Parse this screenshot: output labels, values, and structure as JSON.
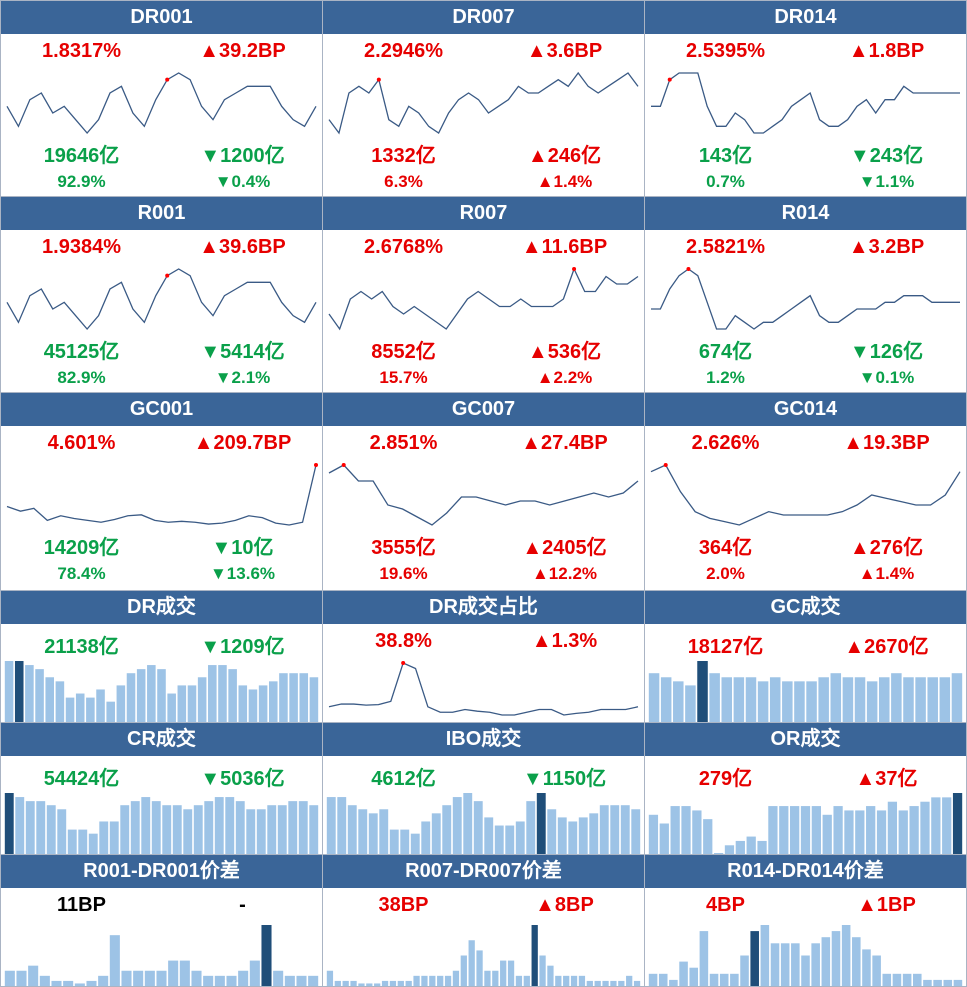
{
  "colors": {
    "header_bg": "#3a6598",
    "up": "#e60000",
    "down": "#0aa04a",
    "line": "#3a5a85",
    "bar": "#9dc3e6",
    "bar_highlight": "#1f4e79"
  },
  "rows": [
    {
      "type": "line-full",
      "cells": [
        {
          "id": "dr001",
          "title": "DR001",
          "rate": "1.8317%",
          "rate_color": "red",
          "rate_change": "▲39.2BP",
          "rate_change_color": "red",
          "volume": "19646亿",
          "volume_color": "green",
          "volume_change": "▼1200亿",
          "volume_change_color": "green",
          "share": "92.9%",
          "share_color": "green",
          "share_change": "▼0.4%",
          "share_change_color": "green",
          "chart_data": {
            "type": "line",
            "values": [
              6,
              3,
              7,
              8,
              5,
              6,
              4,
              2,
              4,
              8,
              9,
              5,
              3,
              7,
              10,
              11,
              10,
              6,
              4,
              7,
              8,
              9,
              9,
              9,
              6,
              4,
              3,
              6
            ],
            "highlight_index": 14
          }
        },
        {
          "id": "dr007",
          "title": "DR007",
          "rate": "2.2946%",
          "rate_color": "red",
          "rate_change": "▲3.6BP",
          "rate_change_color": "red",
          "volume": "1332亿",
          "volume_color": "red",
          "volume_change": "▲246亿",
          "volume_change_color": "red",
          "share": "6.3%",
          "share_color": "red",
          "share_change": "▲1.4%",
          "share_change_color": "red",
          "chart_data": {
            "type": "line",
            "values": [
              3,
              1,
              7,
              8,
              7,
              9,
              3,
              2,
              5,
              4,
              2,
              1,
              4,
              6,
              7,
              6,
              4,
              5,
              6,
              8,
              7,
              7,
              8,
              9,
              8,
              10,
              8,
              7,
              8,
              9,
              10,
              8
            ],
            "highlight_index": 5
          }
        },
        {
          "id": "dr014",
          "title": "DR014",
          "rate": "2.5395%",
          "rate_color": "red",
          "rate_change": "▲1.8BP",
          "rate_change_color": "red",
          "volume": "143亿",
          "volume_color": "green",
          "volume_change": "▼243亿",
          "volume_change_color": "green",
          "share": "0.7%",
          "share_color": "green",
          "share_change": "▼1.1%",
          "share_change_color": "green",
          "chart_data": {
            "type": "line",
            "values": [
              5,
              5,
              9,
              10,
              10,
              10,
              5,
              2,
              2,
              4,
              3,
              1,
              1,
              2,
              3,
              5,
              6,
              7,
              3,
              2,
              2,
              3,
              5,
              6,
              4,
              6,
              6,
              8,
              7,
              7,
              7,
              7,
              7,
              7
            ],
            "highlight_index": 2
          }
        }
      ]
    },
    {
      "type": "line-full",
      "cells": [
        {
          "id": "r001",
          "title": "R001",
          "rate": "1.9384%",
          "rate_color": "red",
          "rate_change": "▲39.6BP",
          "rate_change_color": "red",
          "volume": "45125亿",
          "volume_color": "green",
          "volume_change": "▼5414亿",
          "volume_change_color": "green",
          "share": "82.9%",
          "share_color": "green",
          "share_change": "▼2.1%",
          "share_change_color": "green",
          "chart_data": {
            "type": "line",
            "values": [
              6,
              3,
              7,
              8,
              5,
              6,
              4,
              2,
              4,
              8,
              9,
              5,
              3,
              7,
              10,
              11,
              10,
              6,
              4,
              7,
              8,
              9,
              9,
              9,
              6,
              4,
              3,
              6
            ],
            "highlight_index": 14
          }
        },
        {
          "id": "r007",
          "title": "R007",
          "rate": "2.6768%",
          "rate_color": "red",
          "rate_change": "▲11.6BP",
          "rate_change_color": "red",
          "volume": "8552亿",
          "volume_color": "red",
          "volume_change": "▲536亿",
          "volume_change_color": "red",
          "share": "15.7%",
          "share_color": "red",
          "share_change": "▲2.2%",
          "share_change_color": "red",
          "chart_data": {
            "type": "line",
            "values": [
              3,
              1,
              5,
              6,
              5,
              6,
              4,
              3,
              4,
              3,
              2,
              1,
              3,
              5,
              6,
              5,
              4,
              4,
              5,
              4,
              4,
              4,
              5,
              9,
              6,
              6,
              8,
              7,
              7,
              8
            ],
            "highlight_index": 23
          }
        },
        {
          "id": "r014",
          "title": "R014",
          "rate": "2.5821%",
          "rate_color": "red",
          "rate_change": "▲3.2BP",
          "rate_change_color": "red",
          "volume": "674亿",
          "volume_color": "green",
          "volume_change": "▼126亿",
          "volume_change_color": "green",
          "share": "1.2%",
          "share_color": "green",
          "share_change": "▼0.1%",
          "share_change_color": "green",
          "chart_data": {
            "type": "line",
            "values": [
              5,
              5,
              8,
              10,
              11,
              10,
              6,
              2,
              2,
              4,
              3,
              2,
              3,
              3,
              4,
              5,
              6,
              7,
              4,
              3,
              3,
              4,
              5,
              5,
              5,
              6,
              6,
              7,
              7,
              7,
              6,
              6,
              6,
              6
            ],
            "highlight_index": 4
          }
        }
      ]
    },
    {
      "type": "line-full",
      "cells": [
        {
          "id": "gc001",
          "title": "GC001",
          "rate": "4.601%",
          "rate_color": "red",
          "rate_change": "▲209.7BP",
          "rate_change_color": "red",
          "volume": "14209亿",
          "volume_color": "green",
          "volume_change": "▼10亿",
          "volume_change_color": "green",
          "share": "78.4%",
          "share_color": "green",
          "share_change": "▼13.6%",
          "share_change_color": "green",
          "chart_data": {
            "type": "line",
            "values": [
              4,
              3.5,
              3.8,
              2.5,
              3,
              2.7,
              2.5,
              2.3,
              2.6,
              3,
              3.1,
              2.5,
              2.3,
              2.4,
              2.3,
              2.1,
              2.2,
              2.5,
              3,
              2.8,
              2.2,
              2.0,
              2.3,
              8.5
            ],
            "highlight_index": 23
          }
        },
        {
          "id": "gc007",
          "title": "GC007",
          "rate": "2.851%",
          "rate_color": "red",
          "rate_change": "▲27.4BP",
          "rate_change_color": "red",
          "volume": "3555亿",
          "volume_color": "red",
          "volume_change": "▲2405亿",
          "volume_change_color": "red",
          "share": "19.6%",
          "share_color": "red",
          "share_change": "▲12.2%",
          "share_change_color": "red",
          "chart_data": {
            "type": "line",
            "values": [
              9,
              10,
              8,
              8,
              5,
              4.5,
              3.5,
              2.5,
              4,
              6,
              6,
              5.5,
              5,
              5.5,
              5.5,
              5,
              5.5,
              6,
              6.5,
              6,
              6.5,
              8
            ],
            "highlight_index": 1
          }
        },
        {
          "id": "gc014",
          "title": "GC014",
          "rate": "2.626%",
          "rate_color": "red",
          "rate_change": "▲19.3BP",
          "rate_change_color": "red",
          "volume": "364亿",
          "volume_color": "red",
          "volume_change": "▲276亿",
          "volume_change_color": "red",
          "share": "2.0%",
          "share_color": "red",
          "share_change": "▲1.4%",
          "share_change_color": "red",
          "chart_data": {
            "type": "line",
            "values": [
              10,
              11,
              7,
              4,
              3,
              2.5,
              2,
              3,
              4,
              3.5,
              3.5,
              3.5,
              3.5,
              4,
              5,
              6.5,
              6,
              5.5,
              5,
              5,
              6.5,
              10
            ],
            "highlight_index": 1
          }
        }
      ]
    },
    {
      "type": "bar-half",
      "cells": [
        {
          "id": "dr-volume",
          "title": "DR成交",
          "value": "21138亿",
          "value_color": "green",
          "change": "▼1209亿",
          "change_color": "green",
          "chart_data": {
            "type": "bar",
            "values": [
              15,
              15,
              14,
              13,
              11,
              10,
              6,
              7,
              6,
              8,
              5,
              9,
              12,
              13,
              14,
              13,
              7,
              9,
              9,
              11,
              14,
              14,
              13,
              9,
              8,
              9,
              10,
              12,
              12,
              12,
              11
            ],
            "highlight_index": 1
          }
        },
        {
          "id": "dr-share",
          "title": "DR成交占比",
          "value": "38.8%",
          "value_color": "red",
          "change": "▲1.3%",
          "change_color": "red",
          "chart_data": {
            "type": "line",
            "values": [
              2,
              2.5,
              2.5,
              2.3,
              2.4,
              3,
              10,
              9,
              2,
              1,
              1,
              1.5,
              1.2,
              1,
              0.5,
              0.5,
              1,
              1.5,
              1.5,
              0.5,
              0.8,
              1,
              1.5,
              1.5,
              1.5,
              2
            ],
            "highlight_index": 6
          }
        },
        {
          "id": "gc-volume",
          "title": "GC成交",
          "value": "18127亿",
          "value_color": "red",
          "change": "▲2670亿",
          "change_color": "red",
          "chart_data": {
            "type": "bar",
            "values": [
              12,
              11,
              10,
              9,
              15,
              12,
              11,
              11,
              11,
              10,
              11,
              10,
              10,
              10,
              11,
              12,
              11,
              11,
              10,
              11,
              12,
              11,
              11,
              11,
              11,
              12
            ],
            "highlight_index": 4
          }
        }
      ]
    },
    {
      "type": "bar-half",
      "cells": [
        {
          "id": "cr-volume",
          "title": "CR成交",
          "value": "54424亿",
          "value_color": "green",
          "change": "▼5036亿",
          "change_color": "green",
          "chart_data": {
            "type": "bar",
            "values": [
              15,
              14,
              13,
              13,
              12,
              11,
              6,
              6,
              5,
              8,
              8,
              12,
              13,
              14,
              13,
              12,
              12,
              11,
              12,
              13,
              14,
              14,
              13,
              11,
              11,
              12,
              12,
              13,
              13,
              12
            ],
            "highlight_index": 0
          }
        },
        {
          "id": "ibo-volume",
          "title": "IBO成交",
          "value": "4612亿",
          "value_color": "green",
          "change": "▼1150亿",
          "change_color": "green",
          "chart_data": {
            "type": "bar",
            "values": [
              14,
              14,
              12,
              11,
              10,
              11,
              6,
              6,
              5,
              8,
              10,
              12,
              14,
              15,
              13,
              9,
              7,
              7,
              8,
              13,
              15,
              11,
              9,
              8,
              9,
              10,
              12,
              12,
              12,
              11
            ],
            "highlight_index": 20
          }
        },
        {
          "id": "or-volume",
          "title": "OR成交",
          "value": "279亿",
          "value_color": "red",
          "change": "▲37亿",
          "change_color": "red",
          "chart_data": {
            "type": "bar",
            "values": [
              9,
              7,
              11,
              11,
              10,
              8,
              0,
              2,
              3,
              4,
              3,
              11,
              11,
              11,
              11,
              11,
              9,
              11,
              10,
              10,
              11,
              10,
              12,
              10,
              11,
              12,
              13,
              13,
              14
            ],
            "highlight_index": 28
          }
        }
      ]
    },
    {
      "type": "bar-half",
      "cells": [
        {
          "id": "r001-dr001-spread",
          "title": "R001-DR001价差",
          "value": "11BP",
          "value_color": "black",
          "change": "-",
          "change_color": "black",
          "chart_data": {
            "type": "bar",
            "values": [
              3,
              3,
              4,
              2,
              1,
              1,
              0.5,
              1,
              2,
              10,
              3,
              3,
              3,
              3,
              5,
              5,
              3,
              2,
              2,
              2,
              3,
              5,
              12,
              3,
              2,
              2,
              2
            ],
            "highlight_index": 22
          }
        },
        {
          "id": "r007-dr007-spread",
          "title": "R007-DR007价差",
          "value": "38BP",
          "value_color": "red",
          "change": "▲8BP",
          "change_color": "red",
          "chart_data": {
            "type": "bar",
            "values": [
              3,
              1,
              1,
              1,
              0.5,
              0.5,
              0.5,
              1,
              1,
              1,
              1,
              2,
              2,
              2,
              2,
              2,
              3,
              6,
              9,
              7,
              3,
              3,
              5,
              5,
              2,
              2,
              12,
              6,
              4,
              2,
              2,
              2,
              2,
              1,
              1,
              1,
              1,
              1,
              2,
              1
            ],
            "highlight_index": 26
          }
        },
        {
          "id": "r014-dr014-spread",
          "title": "R014-DR014价差",
          "value": "4BP",
          "value_color": "red",
          "change": "▲1BP",
          "change_color": "red",
          "chart_data": {
            "type": "bar",
            "values": [
              2,
              2,
              1,
              4,
              3,
              9,
              2,
              2,
              2,
              5,
              9,
              10,
              7,
              7,
              7,
              5,
              7,
              8,
              9,
              10,
              8,
              6,
              5,
              2,
              2,
              2,
              2,
              1,
              1,
              1,
              1
            ],
            "highlight_index": 10
          }
        }
      ]
    }
  ]
}
